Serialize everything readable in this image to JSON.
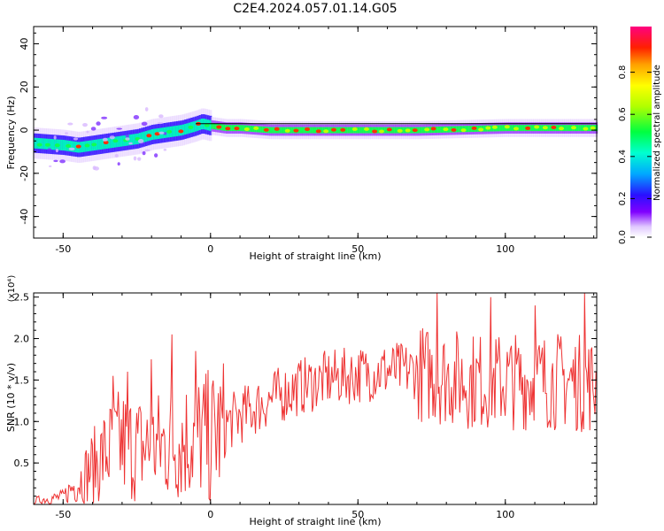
{
  "title": "C2E4.2024.057.01.14.G05",
  "chart_data": [
    {
      "type": "heatmap",
      "xlabel": "Height of straight line (km)",
      "ylabel": "Frequency (Hz)",
      "xlim": [
        -60,
        131
      ],
      "ylim": [
        -50,
        48
      ],
      "xticks": [
        -50,
        0,
        50,
        100
      ],
      "yticks": [
        -40,
        -20,
        0,
        20,
        40
      ],
      "colorbar": {
        "label": "Normalized spectral amplitude",
        "range": [
          0,
          1
        ],
        "ticks": [
          "0.0",
          "0.2",
          "0.4",
          "0.6",
          "0.8"
        ]
      },
      "ridge": [
        [
          -60,
          -6
        ],
        [
          -50,
          -7
        ],
        [
          -45,
          -8
        ],
        [
          -40,
          -7
        ],
        [
          -35,
          -6
        ],
        [
          -30,
          -5
        ],
        [
          -25,
          -4
        ],
        [
          -20,
          -2
        ],
        [
          -15,
          -1
        ],
        [
          -10,
          0
        ],
        [
          -5,
          2
        ],
        [
          -3,
          3
        ],
        [
          0,
          2
        ],
        [
          5,
          1
        ],
        [
          10,
          1
        ],
        [
          20,
          0
        ],
        [
          30,
          0
        ],
        [
          50,
          0
        ],
        [
          70,
          0
        ],
        [
          100,
          1
        ],
        [
          131,
          1
        ]
      ],
      "reference_line_y": 3
    },
    {
      "type": "line",
      "xlabel": "Height of straight line (km)",
      "ylabel": "SNR (10 * v/v)",
      "yscale_label": "(x10⁴)",
      "xlim": [
        -60,
        131
      ],
      "ylim": [
        0,
        2.55
      ],
      "xticks": [
        -50,
        0,
        50,
        100
      ],
      "yticks": [
        0.5,
        1.0,
        1.5,
        2.0,
        2.5
      ],
      "series": [
        {
          "color": "#ee3333",
          "trend": [
            [
              -60,
              0.05
            ],
            [
              -50,
              0.1
            ],
            [
              -45,
              0.3
            ],
            [
              -40,
              0.5
            ],
            [
              -35,
              0.7
            ],
            [
              -30,
              0.8
            ],
            [
              -25,
              0.75
            ],
            [
              -20,
              0.75
            ],
            [
              -15,
              0.8
            ],
            [
              -10,
              0.85
            ],
            [
              -5,
              0.9
            ],
            [
              0,
              0.9
            ],
            [
              5,
              1.0
            ],
            [
              10,
              1.1
            ],
            [
              20,
              1.3
            ],
            [
              30,
              1.45
            ],
            [
              40,
              1.55
            ],
            [
              50,
              1.6
            ],
            [
              60,
              1.65
            ],
            [
              70,
              1.65
            ],
            [
              80,
              1.6
            ],
            [
              90,
              1.55
            ],
            [
              100,
              1.55
            ],
            [
              110,
              1.55
            ],
            [
              120,
              1.55
            ],
            [
              131,
              1.5
            ]
          ],
          "peaks": [
            [
              -33,
              1.55
            ],
            [
              -28,
              1.6
            ],
            [
              -20,
              1.75
            ],
            [
              -13,
              2.05
            ],
            [
              -5,
              1.85
            ],
            [
              0,
              0.05
            ],
            [
              77,
              2.55
            ],
            [
              95,
              2.5
            ],
            [
              110,
              2.4
            ],
            [
              127,
              2.55
            ]
          ]
        }
      ]
    }
  ]
}
